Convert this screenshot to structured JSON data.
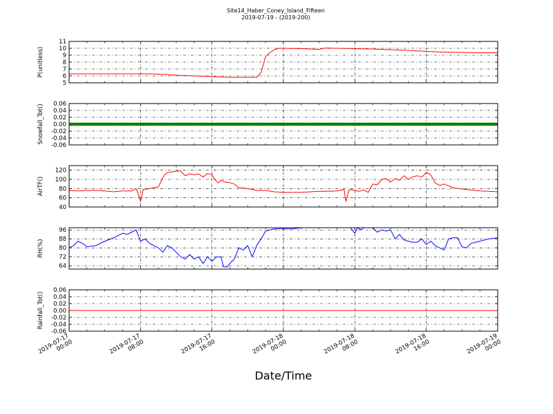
{
  "chart_data": {
    "type": "line",
    "title": "Site14_Haber_Coney_Island_Fifteen",
    "subtitle": "2019-07-19 - (2019-200)",
    "xlabel": "Date/Time",
    "x_range_hours": [
      0,
      48
    ],
    "x_ticks": [
      {
        "hour": 0,
        "line1": "2019-07-17",
        "line2": "00:00"
      },
      {
        "hour": 8,
        "line1": "2019-07-17",
        "line2": "08:00"
      },
      {
        "hour": 16,
        "line1": "2019-07-17",
        "line2": "16:00"
      },
      {
        "hour": 24,
        "line1": "2019-07-18",
        "line2": "00:00"
      },
      {
        "hour": 32,
        "line1": "2019-07-18",
        "line2": "08:00"
      },
      {
        "hour": 40,
        "line1": "2019-07-18",
        "line2": "16:00"
      },
      {
        "hour": 48,
        "line1": "2019-07-19",
        "line2": "00:00"
      }
    ],
    "grid": true,
    "panels": [
      {
        "ylabel": "P(unitless)",
        "ylim": [
          5,
          11
        ],
        "yticks": [
          "5",
          "6",
          "7",
          "8",
          "9",
          "10",
          "11"
        ],
        "color": "#ff0000",
        "style": "line",
        "series": {
          "x": [
            0,
            2,
            4,
            6,
            8,
            9,
            10,
            11,
            12,
            13,
            14,
            15,
            16,
            17,
            18,
            19,
            20,
            21,
            21.5,
            22,
            22.5,
            23,
            23.5,
            24,
            26,
            28,
            28.5,
            29,
            29.5,
            30,
            32,
            34,
            36,
            38,
            40,
            42,
            44,
            46,
            48
          ],
          "y": [
            6.3,
            6.3,
            6.3,
            6.3,
            6.3,
            6.3,
            6.25,
            6.2,
            6.1,
            6.05,
            6.0,
            5.95,
            5.9,
            5.85,
            5.8,
            5.8,
            5.8,
            5.8,
            6.5,
            8.8,
            9.4,
            9.8,
            10.0,
            10.0,
            9.95,
            9.85,
            10.0,
            10.05,
            10.0,
            10.0,
            9.95,
            9.9,
            9.8,
            9.7,
            9.55,
            9.45,
            9.4,
            9.35,
            9.35
          ]
        }
      },
      {
        "ylabel": "Snowfall_Tot()",
        "ylim": [
          -0.06,
          0.06
        ],
        "yticks": [
          "-0.06",
          "-0.04",
          "-0.02",
          "0.00",
          "0.02",
          "0.04",
          "0.06"
        ],
        "color": "#008000",
        "style": "markers",
        "series": {
          "x_start": 0,
          "x_end": 48,
          "constant": 0.0
        }
      },
      {
        "ylabel": "AirTF()",
        "ylim": [
          40,
          130
        ],
        "yticks": [
          "40",
          "60",
          "80",
          "100",
          "120"
        ],
        "color": "#ff0000",
        "style": "line",
        "series": {
          "x": [
            0,
            1,
            2,
            3,
            4,
            5,
            5.5,
            6,
            7,
            7.5,
            7.8,
            8,
            8.3,
            9,
            10,
            10.4,
            10.7,
            11,
            11.5,
            12,
            12.5,
            13,
            13.5,
            14,
            14.5,
            15,
            15.5,
            16,
            16.3,
            16.7,
            17,
            17.5,
            18,
            18.5,
            19,
            20,
            21,
            22,
            23,
            24,
            25,
            26,
            27,
            28,
            29,
            30,
            30.8,
            31,
            31.3,
            31.5,
            32,
            32.5,
            33,
            33.5,
            34,
            34.5,
            35,
            35.5,
            36,
            36.5,
            37,
            37.5,
            38,
            38.5,
            39,
            39.5,
            40,
            40.5,
            41,
            41.5,
            42,
            43,
            44,
            45,
            46,
            47,
            48
          ],
          "y": [
            76,
            75,
            76,
            76,
            75,
            73,
            74,
            75,
            75,
            80,
            65,
            52,
            78,
            80,
            84,
            100,
            110,
            115,
            116,
            118,
            118,
            108,
            112,
            110,
            112,
            105,
            113,
            110,
            100,
            92,
            98,
            94,
            93,
            90,
            82,
            80,
            76,
            76,
            73,
            72,
            72,
            72,
            73,
            74,
            74,
            75,
            78,
            52,
            75,
            78,
            76,
            74,
            77,
            72,
            90,
            88,
            100,
            102,
            94,
            102,
            98,
            108,
            100,
            106,
            108,
            105,
            115,
            110,
            92,
            87,
            90,
            82,
            79,
            77,
            75,
            74,
            73
          ]
        }
      },
      {
        "ylabel": "RH(%)",
        "ylim": [
          61,
          98
        ],
        "yticks": [
          "64",
          "72",
          "80",
          "88",
          "96"
        ],
        "color": "#0000ff",
        "style": "line",
        "series": {
          "x": [
            0,
            0.5,
            1,
            1.5,
            2,
            3,
            4,
            5,
            6,
            6.5,
            7,
            7.5,
            7.8,
            8,
            8.5,
            9,
            10,
            10.5,
            11,
            11.5,
            12,
            12.5,
            13,
            13.5,
            14,
            14.5,
            15,
            15.5,
            16,
            16.5,
            17,
            17.3,
            17.7,
            18,
            18.5,
            19,
            19.5,
            20,
            20.5,
            21,
            21.5,
            22,
            22.5,
            23,
            24,
            25,
            26,
            28,
            30,
            31.5,
            32,
            32.3,
            32.7,
            33,
            34,
            34.5,
            35,
            35.5,
            36,
            36.5,
            37,
            37.5,
            38,
            38.5,
            39,
            39.5,
            40,
            40.5,
            41,
            41.5,
            42,
            42.5,
            43,
            43.5,
            44,
            44.5,
            45,
            45.5,
            46,
            47,
            48
          ],
          "y": [
            80,
            82,
            86,
            84,
            81,
            82,
            86,
            89,
            93,
            92,
            94,
            96,
            90,
            86,
            88,
            84,
            80,
            76,
            82,
            80,
            76,
            72,
            70,
            74,
            70,
            72,
            66,
            72,
            68,
            72,
            72,
            63,
            63,
            66,
            70,
            80,
            78,
            82,
            72,
            82,
            88,
            95,
            96,
            97,
            97,
            97,
            98,
            98,
            98,
            98,
            93,
            98,
            96,
            98,
            98,
            94,
            96,
            95,
            96,
            88,
            92,
            87,
            86,
            85,
            85,
            88,
            83,
            86,
            82,
            80,
            78,
            88,
            89,
            89,
            81,
            80,
            84,
            85,
            86,
            88,
            89
          ]
        }
      },
      {
        "ylabel": "Rainfall_Tot()",
        "ylim": [
          -0.06,
          0.06
        ],
        "yticks": [
          "-0.06",
          "-0.04",
          "-0.02",
          "0.00",
          "0.02",
          "0.04",
          "0.06"
        ],
        "color": "#ff0000",
        "style": "line",
        "series": {
          "x_start": 0,
          "x_end": 48,
          "constant": 0.0
        }
      }
    ]
  }
}
